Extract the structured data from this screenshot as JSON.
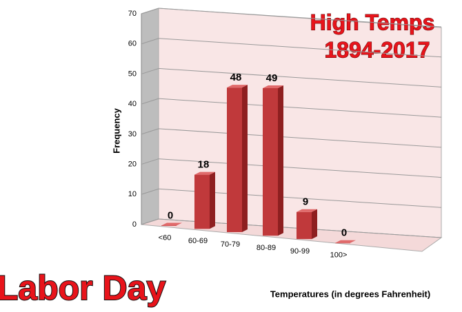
{
  "chart_data": {
    "type": "bar3d",
    "title": "High Temps",
    "subtitle": "1894-2017",
    "annotation": "Labor Day",
    "x_label": "Temperatures (in degrees Fahrenheit)",
    "y_label": "Frequency",
    "categories": [
      "<60",
      "60-69",
      "70-79",
      "80-89",
      "90-99",
      "100>"
    ],
    "values": [
      0,
      18,
      48,
      49,
      9,
      0
    ],
    "color": "#c0393b",
    "ylim": [
      0,
      70
    ],
    "yticks": [
      0,
      10,
      20,
      30,
      40,
      50,
      60,
      70
    ],
    "grid": true
  }
}
